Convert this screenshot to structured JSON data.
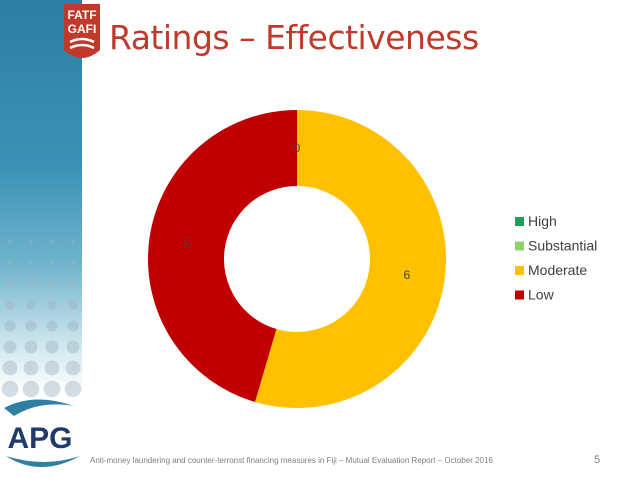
{
  "slide": {
    "title": "Ratings – Effectiveness",
    "footer": "Anti-money laundering and counter-terrorist financing measures in Fiji – Mutual Evaluation Report – October 2016",
    "page_number": "5"
  },
  "logos": {
    "fatf": {
      "line1": "FATF",
      "line2": "GAFI"
    },
    "apg": {
      "text": "APG"
    }
  },
  "colors": {
    "title": "#c0392b",
    "band": "#2e7fa2"
  },
  "chart_data": {
    "type": "pie",
    "donut": true,
    "categories": [
      "High",
      "Substantial",
      "Moderate",
      "Low"
    ],
    "values": [
      0,
      0,
      6,
      5
    ],
    "data_labels": [
      "0",
      "",
      "6",
      "5"
    ],
    "colors": [
      "#1e9e5a",
      "#8fd16e",
      "#ffc000",
      "#c00000"
    ],
    "legend_position": "right"
  }
}
